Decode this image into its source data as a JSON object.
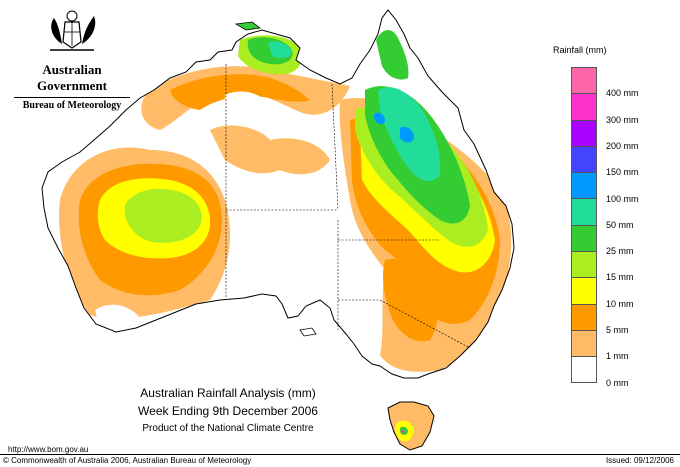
{
  "header": {
    "government": "Australian Government",
    "bureau": "Bureau of Meteorology"
  },
  "legend": {
    "title": "Rainfall (mm)",
    "items": [
      {
        "label": "",
        "color": "#ff66aa"
      },
      {
        "label": "400 mm",
        "color": "#ff33cc"
      },
      {
        "label": "300 mm",
        "color": "#aa00ff"
      },
      {
        "label": "200 mm",
        "color": "#4444ff"
      },
      {
        "label": "150 mm",
        "color": "#0099ff"
      },
      {
        "label": "100 mm",
        "color": "#22dd99"
      },
      {
        "label": "50 mm",
        "color": "#33cc33"
      },
      {
        "label": "25 mm",
        "color": "#aaee22"
      },
      {
        "label": "15 mm",
        "color": "#ffff00"
      },
      {
        "label": "10 mm",
        "color": "#ff9900"
      },
      {
        "label": "5 mm",
        "color": "#ffbb66"
      },
      {
        "label": "1 mm",
        "color": "#ffffff"
      },
      {
        "label": "0 mm",
        "color": ""
      }
    ]
  },
  "caption": {
    "line1": "Australian Rainfall Analysis (mm)",
    "line2": "Week Ending 9th December 2006",
    "line3": "Product of the National Climate Centre"
  },
  "footer": {
    "url": "http://www.bom.gov.au",
    "copyright": "© Commonwealth of Australia 2006, Australian Bureau of Meteorology",
    "issued": "Issued: 09/12/2006"
  },
  "map_colors": {
    "none": "#ffffff",
    "light": "#ffbb66",
    "orange": "#ff9900",
    "yellow": "#ffff00",
    "yellowgreen": "#aaee22",
    "green": "#33cc33",
    "teal": "#22dd99",
    "blue": "#0099ff"
  }
}
